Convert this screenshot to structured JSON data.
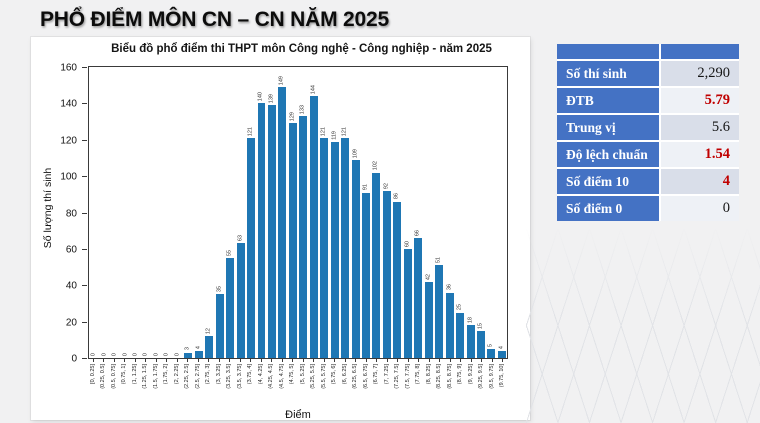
{
  "page": {
    "title": "PHỔ ĐIỂM MÔN CN – CN NĂM 2025"
  },
  "colors": {
    "background": "#f1f1f2",
    "bar": "#1f77b4",
    "table_header_blue": "#4472c4",
    "value_red": "#c00000",
    "row_alt_dark": "#d9dee9",
    "row_alt_light": "#eef1f6"
  },
  "chart_data": {
    "type": "bar",
    "title": "Biểu đồ phổ điểm thi THPT môn Công nghệ - Công nghiệp - năm 2025",
    "xlabel": "Điểm",
    "ylabel": "Số lượng thí sinh",
    "ylim": [
      0,
      160
    ],
    "yticks": [
      0,
      20,
      40,
      60,
      80,
      100,
      120,
      140,
      160
    ],
    "grid": false,
    "legend": "none",
    "bar_value_labels": true,
    "categories": [
      "[0, 0.25]",
      "(0.25, 0.5]",
      "(0.5, 0.75]",
      "(0.75, 1]",
      "(1, 1.25]",
      "(1.25, 1.5]",
      "(1.5, 1.75]",
      "(1.75, 2]",
      "(2, 2.25]",
      "(2.25, 2.5]",
      "(2.5, 2.75]",
      "(2.75, 3]",
      "(3, 3.25]",
      "(3.25, 3.5]",
      "(3.5, 3.75]",
      "(3.75, 4]",
      "(4, 4.25]",
      "(4.25, 4.5]",
      "(4.5, 4.75]",
      "(4.75, 5]",
      "(5, 5.25]",
      "(5.25, 5.5]",
      "(5.5, 5.75]",
      "(5.75, 6]",
      "(6, 6.25]",
      "(6.25, 6.5]",
      "(6.5, 6.75]",
      "(6.75, 7]",
      "(7, 7.25]",
      "(7.25, 7.5]",
      "(7.5, 7.75]",
      "(7.75, 8]",
      "(8, 8.25]",
      "(8.25, 8.5]",
      "(8.5, 8.75]",
      "(8.75, 9]",
      "(9, 9.25]",
      "(9.25, 9.5]",
      "(9.5, 9.75]",
      "(9.75, 10]"
    ],
    "values": [
      0,
      0,
      0,
      0,
      0,
      0,
      0,
      0,
      0,
      3,
      4,
      12,
      35,
      55,
      63,
      121,
      140,
      139,
      149,
      129,
      133,
      144,
      121,
      119,
      121,
      109,
      91,
      102,
      92,
      86,
      60,
      66,
      42,
      51,
      36,
      25,
      18,
      15,
      5,
      4
    ]
  },
  "stats_table": {
    "rows": [
      {
        "label": "Số thí sinh",
        "value": "2,290",
        "red": false
      },
      {
        "label": "ĐTB",
        "value": "5.79",
        "red": true
      },
      {
        "label": "Trung vị",
        "value": "5.6",
        "red": false
      },
      {
        "label": "Độ lệch chuẩn",
        "value": "1.54",
        "red": true
      },
      {
        "label": "Số điểm 10",
        "value": "4",
        "red": true
      },
      {
        "label": "Số điểm 0",
        "value": "0",
        "red": false
      }
    ]
  }
}
